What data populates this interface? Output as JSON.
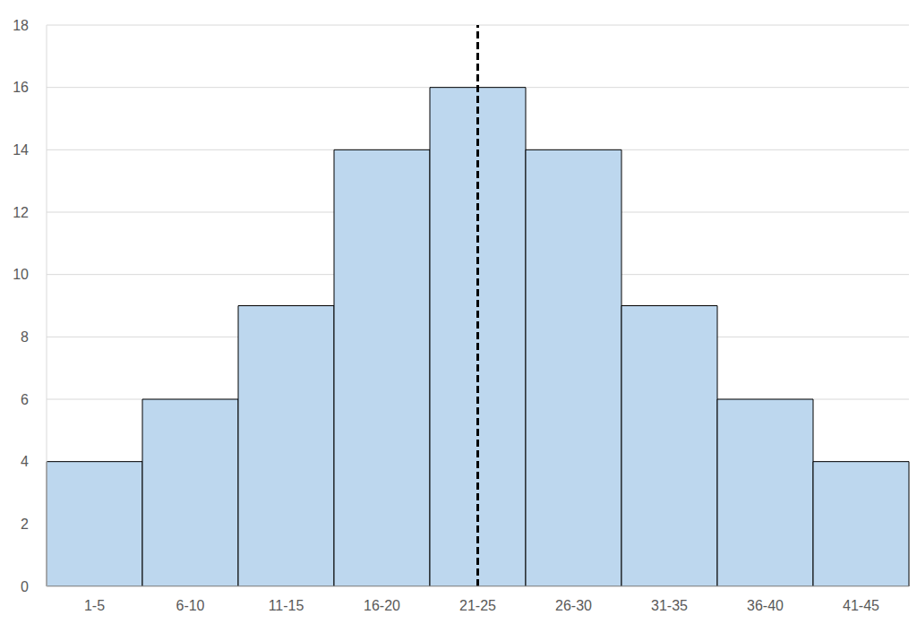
{
  "chart_data": {
    "type": "bar",
    "categories": [
      "1-5",
      "6-10",
      "11-15",
      "16-20",
      "21-25",
      "26-30",
      "31-35",
      "36-40",
      "41-45"
    ],
    "values": [
      4,
      6,
      9,
      14,
      16,
      14,
      9,
      6,
      4
    ],
    "color": "#bdd7ee",
    "ylim": [
      0,
      18
    ],
    "yticks": [
      0,
      2,
      4,
      6,
      8,
      10,
      12,
      14,
      16,
      18
    ],
    "grid": true,
    "reference_line": "21-25"
  }
}
